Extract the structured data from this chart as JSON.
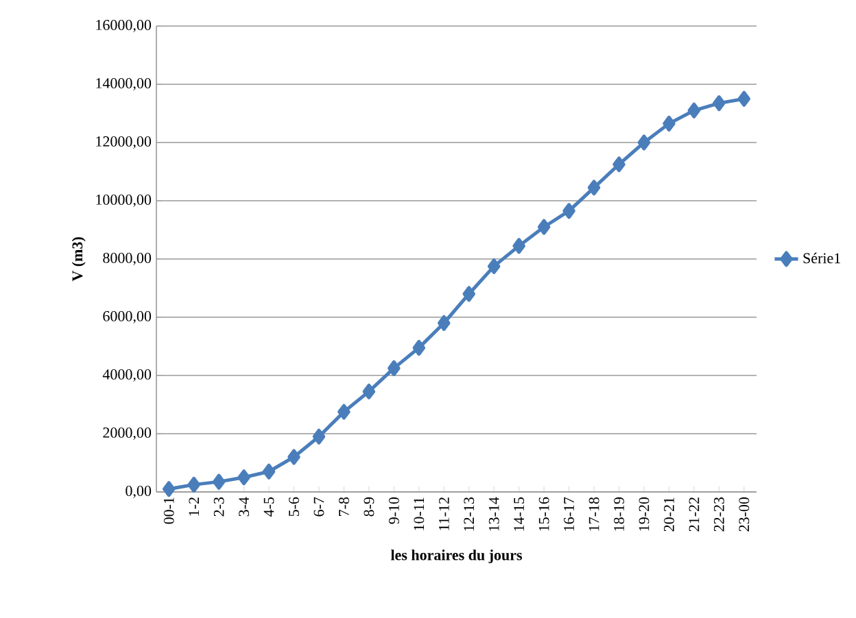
{
  "chart_data": {
    "type": "line",
    "xlabel": "les horaires du jours",
    "ylabel": "V (m3)",
    "categories": [
      "00-1",
      "1-2",
      "2-3",
      "3-4",
      "4-5",
      "5-6",
      "6-7",
      "7-8",
      "8-9",
      "9-10",
      "10-11",
      "11-12",
      "12-13",
      "13-14",
      "14-15",
      "15-16",
      "16-17",
      "17-18",
      "18-19",
      "19-20",
      "20-21",
      "21-22",
      "22-23",
      "23-00"
    ],
    "series": [
      {
        "name": "Série1",
        "color": "#4a7ebb",
        "values": [
          100,
          250,
          350,
          500,
          700,
          1200,
          1900,
          2750,
          3450,
          4250,
          4950,
          5800,
          6800,
          7750,
          8450,
          9100,
          9650,
          10450,
          11250,
          12000,
          12650,
          13100,
          13350,
          13500
        ]
      }
    ],
    "ylim": [
      0,
      16000
    ],
    "yticks": [
      {
        "value": 0,
        "label": "0,00"
      },
      {
        "value": 2000,
        "label": "2000,00"
      },
      {
        "value": 4000,
        "label": "4000,00"
      },
      {
        "value": 6000,
        "label": "6000,00"
      },
      {
        "value": 8000,
        "label": "8000,00"
      },
      {
        "value": 10000,
        "label": "10000,00"
      },
      {
        "value": 12000,
        "label": "12000,00"
      },
      {
        "value": 14000,
        "label": "14000,00"
      },
      {
        "value": 16000,
        "label": "16000,00"
      }
    ],
    "grid": "y",
    "legend": "right",
    "marker": "diamond",
    "line_style": "solid"
  }
}
